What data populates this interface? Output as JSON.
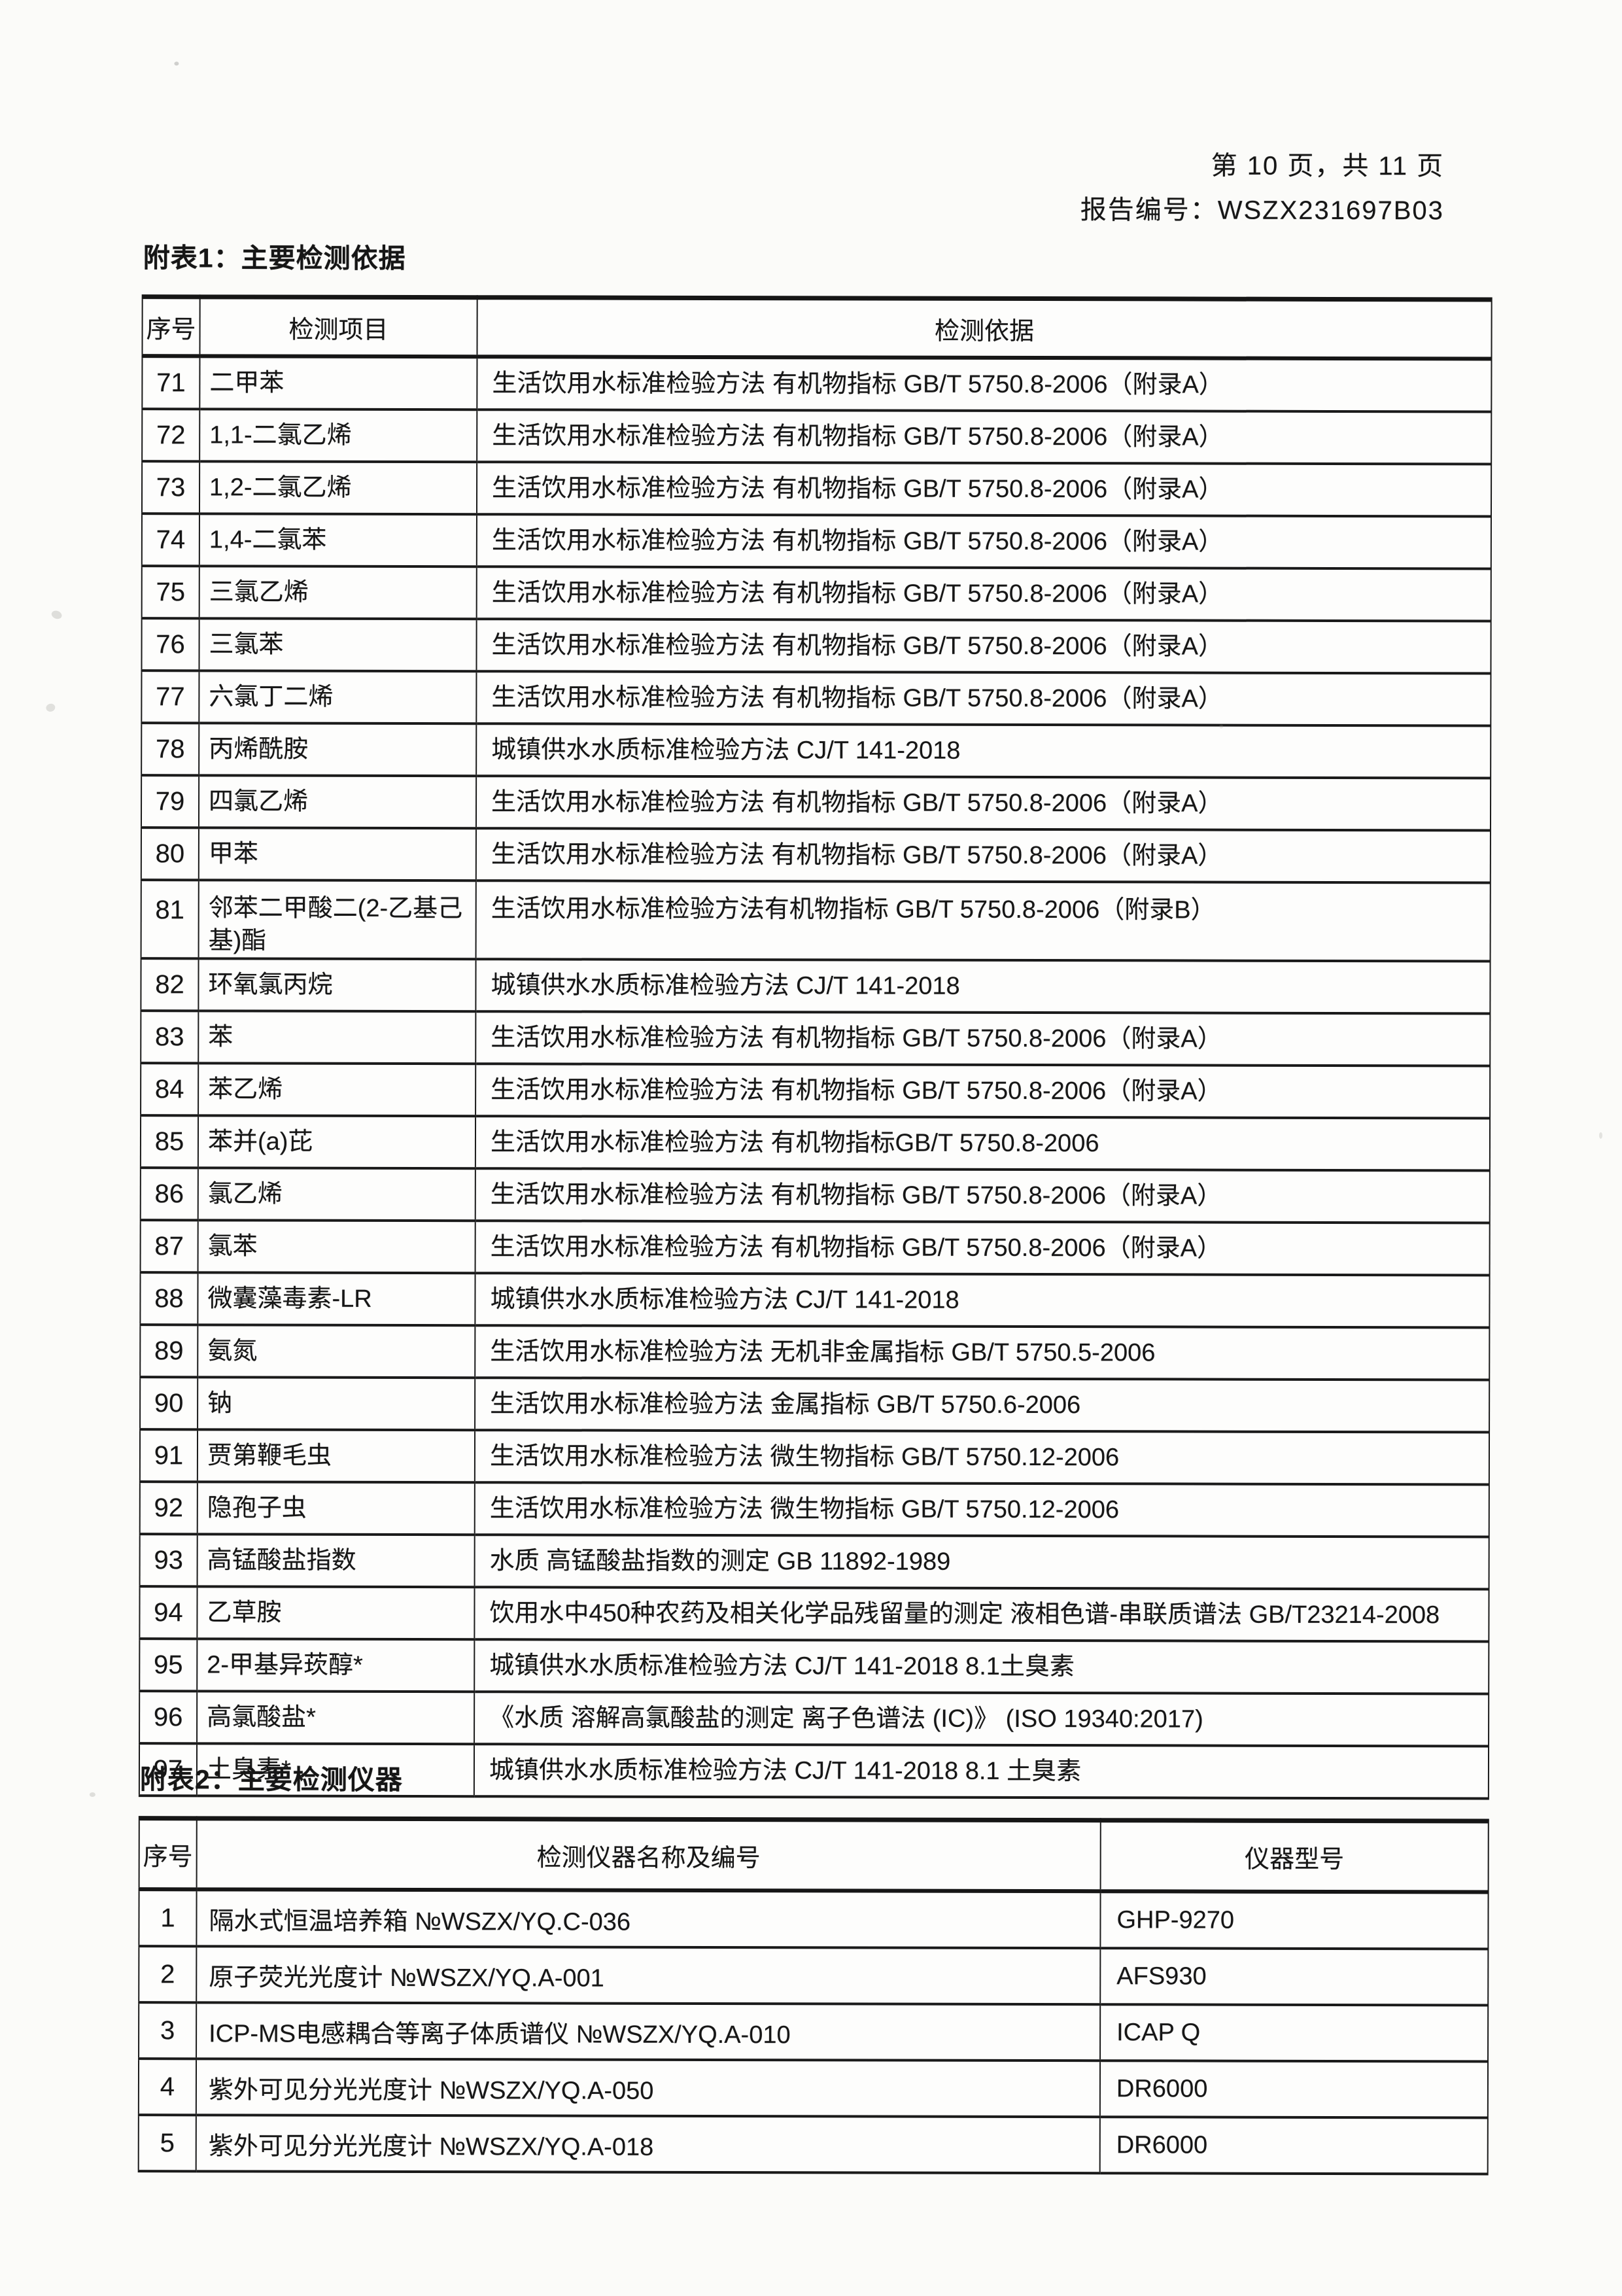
{
  "header": {
    "page_line": "第 10 页，共 11 页",
    "report_line": "报告编号：WSZX231697B03"
  },
  "colors": {
    "paper": "#fbfbf9",
    "ink": "#161616"
  },
  "t1": {
    "title": "附表1：主要检测依据",
    "headers": [
      "序号",
      "检测项目",
      "检测依据"
    ],
    "rows": [
      {
        "no": "71",
        "item": "二甲苯",
        "basis": "生活饮用水标准检验方法 有机物指标 GB/T 5750.8-2006（附录A）"
      },
      {
        "no": "72",
        "item": "1,1-二氯乙烯",
        "basis": "生活饮用水标准检验方法 有机物指标 GB/T 5750.8-2006（附录A）"
      },
      {
        "no": "73",
        "item": "1,2-二氯乙烯",
        "basis": "生活饮用水标准检验方法 有机物指标 GB/T 5750.8-2006（附录A）"
      },
      {
        "no": "74",
        "item": "1,4-二氯苯",
        "basis": "生活饮用水标准检验方法 有机物指标 GB/T 5750.8-2006（附录A）"
      },
      {
        "no": "75",
        "item": "三氯乙烯",
        "basis": "生活饮用水标准检验方法 有机物指标 GB/T 5750.8-2006（附录A）"
      },
      {
        "no": "76",
        "item": "三氯苯",
        "basis": "生活饮用水标准检验方法 有机物指标 GB/T 5750.8-2006（附录A）"
      },
      {
        "no": "77",
        "item": "六氯丁二烯",
        "basis": "生活饮用水标准检验方法 有机物指标 GB/T 5750.8-2006（附录A）"
      },
      {
        "no": "78",
        "item": "丙烯酰胺",
        "basis": "城镇供水水质标准检验方法 CJ/T 141-2018"
      },
      {
        "no": "79",
        "item": "四氯乙烯",
        "basis": "生活饮用水标准检验方法 有机物指标 GB/T 5750.8-2006（附录A）"
      },
      {
        "no": "80",
        "item": "甲苯",
        "basis": "生活饮用水标准检验方法 有机物指标 GB/T 5750.8-2006（附录A）"
      },
      {
        "no": "81",
        "item": "邻苯二甲酸二(2-乙基己基)酯",
        "basis": "生活饮用水标准检验方法有机物指标 GB/T 5750.8-2006（附录B）"
      },
      {
        "no": "82",
        "item": "环氧氯丙烷",
        "basis": "城镇供水水质标准检验方法 CJ/T 141-2018"
      },
      {
        "no": "83",
        "item": "苯",
        "basis": "生活饮用水标准检验方法 有机物指标 GB/T 5750.8-2006（附录A）"
      },
      {
        "no": "84",
        "item": "苯乙烯",
        "basis": "生活饮用水标准检验方法 有机物指标 GB/T 5750.8-2006（附录A）"
      },
      {
        "no": "85",
        "item": "苯并(a)芘",
        "basis": "生活饮用水标准检验方法 有机物指标GB/T 5750.8-2006"
      },
      {
        "no": "86",
        "item": "氯乙烯",
        "basis": "生活饮用水标准检验方法 有机物指标 GB/T 5750.8-2006（附录A）"
      },
      {
        "no": "87",
        "item": "氯苯",
        "basis": "生活饮用水标准检验方法 有机物指标 GB/T 5750.8-2006（附录A）"
      },
      {
        "no": "88",
        "item": "微囊藻毒素-LR",
        "basis": "城镇供水水质标准检验方法 CJ/T 141-2018"
      },
      {
        "no": "89",
        "item": "氨氮",
        "basis": "生活饮用水标准检验方法 无机非金属指标 GB/T 5750.5-2006"
      },
      {
        "no": "90",
        "item": "钠",
        "basis": "生活饮用水标准检验方法 金属指标 GB/T 5750.6-2006"
      },
      {
        "no": "91",
        "item": "贾第鞭毛虫",
        "basis": "生活饮用水标准检验方法 微生物指标 GB/T 5750.12-2006"
      },
      {
        "no": "92",
        "item": "隐孢子虫",
        "basis": "生活饮用水标准检验方法 微生物指标 GB/T 5750.12-2006"
      },
      {
        "no": "93",
        "item": "高锰酸盐指数",
        "basis": "水质 高锰酸盐指数的测定 GB 11892-1989"
      },
      {
        "no": "94",
        "item": "乙草胺",
        "basis": "饮用水中450种农药及相关化学品残留量的测定 液相色谱-串联质谱法 GB/T23214-2008"
      },
      {
        "no": "95",
        "item": "2-甲基异莰醇*",
        "basis": "城镇供水水质标准检验方法 CJ/T 141-2018 8.1土臭素"
      },
      {
        "no": "96",
        "item": "高氯酸盐*",
        "basis": "《水质 溶解高氯酸盐的测定 离子色谱法 (IC)》 (ISO 19340:2017)"
      },
      {
        "no": "97",
        "item": "土臭素*",
        "basis": "城镇供水水质标准检验方法 CJ/T 141-2018 8.1 土臭素"
      }
    ]
  },
  "t2": {
    "title": "附表2：主要检测仪器",
    "headers": [
      "序号",
      "检测仪器名称及编号",
      "仪器型号"
    ],
    "rows": [
      {
        "no": "1",
        "name": "隔水式恒温培养箱 №WSZX/YQ.C-036",
        "model": "GHP-9270"
      },
      {
        "no": "2",
        "name": "原子荧光光度计 №WSZX/YQ.A-001",
        "model": "AFS930"
      },
      {
        "no": "3",
        "name": "ICP-MS电感耦合等离子体质谱仪 №WSZX/YQ.A-010",
        "model": "ICAP Q"
      },
      {
        "no": "4",
        "name": "紫外可见分光光度计 №WSZX/YQ.A-050",
        "model": "DR6000"
      },
      {
        "no": "5",
        "name": "紫外可见分光光度计 №WSZX/YQ.A-018",
        "model": "DR6000"
      }
    ]
  }
}
